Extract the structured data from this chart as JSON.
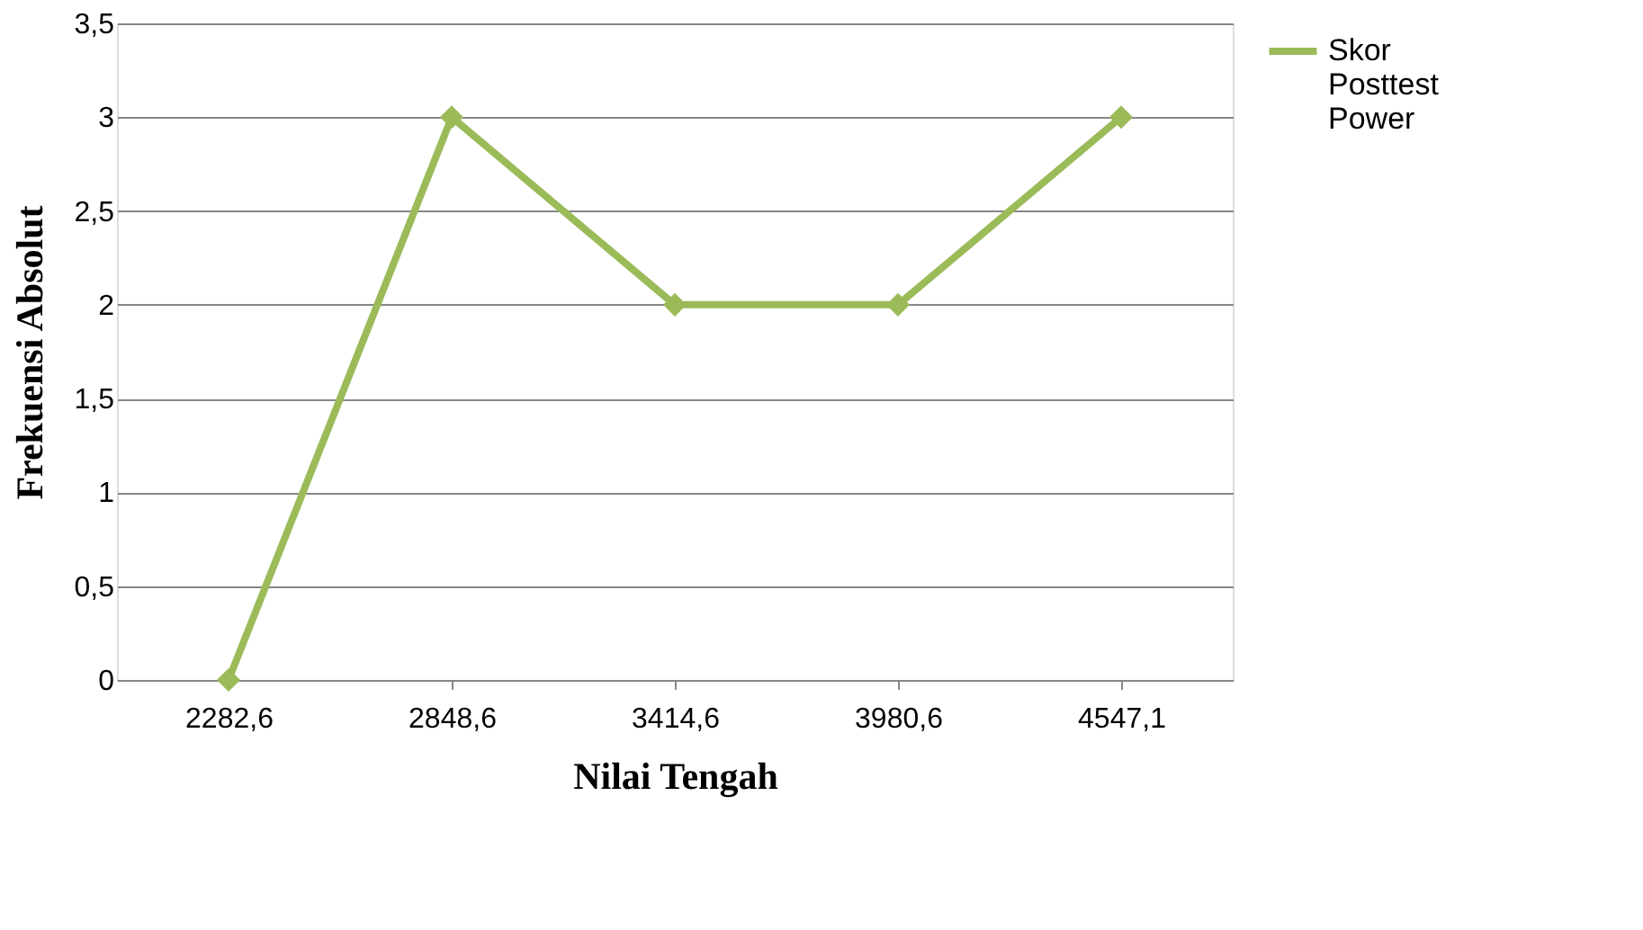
{
  "chart_data": {
    "type": "line",
    "xlabel": "Nilai Tengah",
    "ylabel": "Frekuensi Absolut",
    "categories": [
      "2282,6",
      "2848,6",
      "3414,6",
      "3980,6",
      "4547,1"
    ],
    "series": [
      {
        "name": "Skor Posttest Power",
        "color": "#9bbb59",
        "values": [
          0,
          3,
          2,
          2,
          3
        ]
      }
    ],
    "ylim": [
      0,
      3.5
    ],
    "yticks": [
      0,
      {
        "value": 0.5,
        "label": "0,5"
      },
      1,
      {
        "value": 1.5,
        "label": "1,5"
      },
      2,
      {
        "value": 2.5,
        "label": "2,5"
      },
      3,
      {
        "value": 3.5,
        "label": "3,5"
      }
    ],
    "grid": "y",
    "legend": "right",
    "marker": "diamond",
    "line_style": "solid"
  }
}
